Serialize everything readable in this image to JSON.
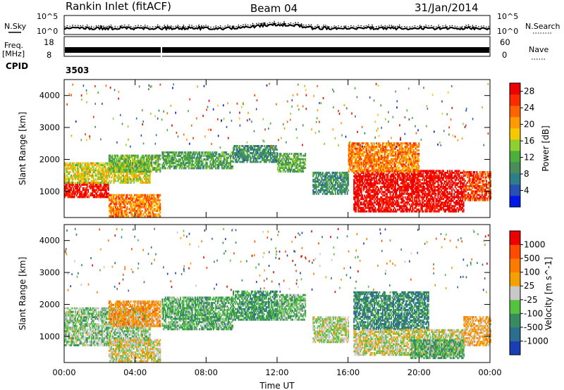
{
  "header": {
    "station": "Rankin Inlet (fitACF)",
    "beam": "Beam 04",
    "date": "31/Jan/2014"
  },
  "noise_panel": {
    "left_label": "N.Sky",
    "left_ticks": [
      "10^5",
      "10^0"
    ],
    "right_label": "N.Search",
    "right_ticks": [
      "10^5",
      "10^0"
    ]
  },
  "freq_panel": {
    "left_label_line1": "Freq.",
    "left_label_line2": "[MHz]",
    "left_ticks": [
      "18",
      "8"
    ],
    "right_label": "Nave",
    "right_ticks": [
      "60",
      "0"
    ]
  },
  "cpid": {
    "label": "CPID",
    "value": "3503"
  },
  "time_axis": {
    "label": "Time UT",
    "ticks": [
      "00:00",
      "04:00",
      "08:00",
      "12:00",
      "16:00",
      "20:00",
      "00:00"
    ]
  },
  "chart_data": [
    {
      "type": "heatmap",
      "title": "",
      "xlabel": "Time UT",
      "ylabel": "Slant Range [km]",
      "xlim": [
        0,
        24
      ],
      "ylim": [
        180,
        4500
      ],
      "yticks": [
        "1000",
        "2000",
        "3000",
        "4000"
      ],
      "colorbar": {
        "label": "Power [dB]",
        "ticks": [
          "4",
          "8",
          "12",
          "16",
          "20",
          "24",
          "28"
        ],
        "range": [
          0,
          30
        ],
        "colors": [
          "#0018e8",
          "#2850b4",
          "#2e7e8a",
          "#4a8c5a",
          "#4caf3a",
          "#8fd030",
          "#f5c800",
          "#ff9a00",
          "#ff6400",
          "#ff2a00",
          "#ee0000"
        ]
      },
      "regions": [
        {
          "t": [
            0.0,
            2.5
          ],
          "r": [
            800,
            1250
          ],
          "value": 28
        },
        {
          "t": [
            0.0,
            4.8
          ],
          "r": [
            1250,
            1900
          ],
          "value": 17
        },
        {
          "t": [
            2.5,
            5.4
          ],
          "r": [
            1600,
            2100
          ],
          "value": 13
        },
        {
          "t": [
            5.5,
            9.5
          ],
          "r": [
            1700,
            2200
          ],
          "value": 11
        },
        {
          "t": [
            9.5,
            12.0
          ],
          "r": [
            1900,
            2400
          ],
          "value": 9
        },
        {
          "t": [
            12.0,
            13.6
          ],
          "r": [
            1600,
            2200
          ],
          "value": 12
        },
        {
          "t": [
            2.5,
            5.4
          ],
          "r": [
            200,
            900
          ],
          "value": 22
        },
        {
          "t": [
            14.0,
            16.0
          ],
          "r": [
            900,
            1600
          ],
          "value": 9
        },
        {
          "t": [
            16.3,
            22.5
          ],
          "r": [
            350,
            1650
          ],
          "value": 29
        },
        {
          "t": [
            16.0,
            20.0
          ],
          "r": [
            1600,
            2500
          ],
          "value": 22
        },
        {
          "t": [
            22.5,
            24.0
          ],
          "r": [
            700,
            1600
          ],
          "value": 25
        }
      ]
    },
    {
      "type": "heatmap",
      "title": "",
      "xlabel": "Time UT",
      "ylabel": "Slant Range [km]",
      "xlim": [
        0,
        24
      ],
      "ylim": [
        180,
        4500
      ],
      "yticks": [
        "1000",
        "2000",
        "3000",
        "4000"
      ],
      "colorbar": {
        "label": "Velocity [m s^-1]",
        "ticks": [
          "1000",
          "500",
          "100",
          "25",
          "-25",
          "-100",
          "-500",
          "-1000"
        ],
        "range": [
          -1000,
          1000
        ],
        "colors": [
          "#1a3fb5",
          "#2d6e90",
          "#3a8a60",
          "#55c240",
          "#c8c8c8",
          "#f5a000",
          "#ff7a00",
          "#ff4a00",
          "#ee0000"
        ]
      },
      "regions": [
        {
          "t": [
            0.0,
            4.8
          ],
          "r": [
            700,
            1900
          ],
          "value": -150
        },
        {
          "t": [
            2.5,
            5.4
          ],
          "r": [
            1300,
            2100
          ],
          "value": 300
        },
        {
          "t": [
            5.5,
            9.5
          ],
          "r": [
            1200,
            2200
          ],
          "value": -300
        },
        {
          "t": [
            9.5,
            12.0
          ],
          "r": [
            1500,
            2400
          ],
          "value": -400
        },
        {
          "t": [
            12.0,
            13.6
          ],
          "r": [
            1500,
            2300
          ],
          "value": -250
        },
        {
          "t": [
            2.5,
            5.4
          ],
          "r": [
            200,
            900
          ],
          "value": 60
        },
        {
          "t": [
            14.0,
            16.0
          ],
          "r": [
            800,
            1600
          ],
          "value": -50
        },
        {
          "t": [
            16.3,
            20.5
          ],
          "r": [
            1200,
            2400
          ],
          "value": -500
        },
        {
          "t": [
            16.3,
            22.5
          ],
          "r": [
            400,
            1200
          ],
          "value": 0
        },
        {
          "t": [
            19.5,
            22.5
          ],
          "r": [
            300,
            900
          ],
          "value": -300
        },
        {
          "t": [
            22.5,
            24.0
          ],
          "r": [
            700,
            1600
          ],
          "value": 200
        }
      ]
    }
  ]
}
